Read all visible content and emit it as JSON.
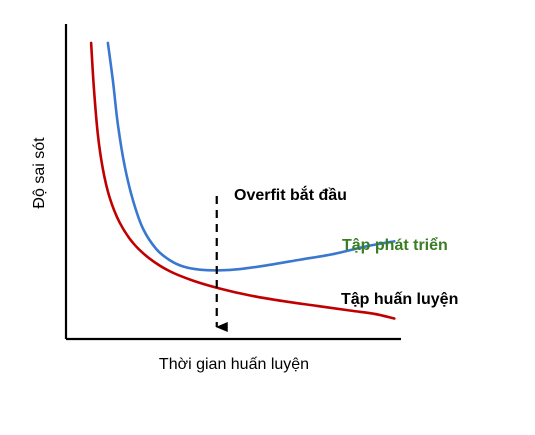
{
  "chart_data": {
    "type": "line",
    "title": "",
    "xlabel": "Thời gian huấn luyện",
    "ylabel": "Độ sai sót",
    "xlim": [
      0,
      100
    ],
    "ylim": [
      0,
      100
    ],
    "grid": false,
    "ticks": false,
    "series": [
      {
        "name": "Tập phát triển",
        "color": "#3a78d0",
        "points": [
          [
            12.5,
            94
          ],
          [
            14,
            82
          ],
          [
            15.5,
            68
          ],
          [
            17.5,
            55
          ],
          [
            20,
            44
          ],
          [
            23,
            35
          ],
          [
            27,
            28.5
          ],
          [
            31,
            25
          ],
          [
            35,
            23
          ],
          [
            40,
            22
          ],
          [
            46,
            21.8
          ],
          [
            52,
            22.2
          ],
          [
            60,
            23.4
          ],
          [
            70,
            25.2
          ],
          [
            80,
            27
          ],
          [
            90,
            29.5
          ],
          [
            98,
            31
          ]
        ]
      },
      {
        "name": "Tập huấn luyện",
        "color": "#c00000",
        "points": [
          [
            7.5,
            94
          ],
          [
            8.3,
            80
          ],
          [
            9.5,
            65
          ],
          [
            11,
            54
          ],
          [
            13,
            45
          ],
          [
            16,
            37
          ],
          [
            20,
            30.5
          ],
          [
            25,
            25.5
          ],
          [
            31,
            21.5
          ],
          [
            38,
            18.5
          ],
          [
            46,
            16
          ],
          [
            55,
            13.8
          ],
          [
            65,
            12
          ],
          [
            75,
            10.5
          ],
          [
            85,
            9
          ],
          [
            92,
            8
          ],
          [
            98,
            6.5
          ]
        ]
      }
    ],
    "annotations": [
      {
        "id": "overfit",
        "text": "Overfit bắt đầu",
        "x": 45,
        "arrow": "dashed-down",
        "color": "#000000"
      },
      {
        "id": "dev",
        "text": "Tập phát triển",
        "series": "Tập phát triển",
        "color": "#3a7d22"
      },
      {
        "id": "train",
        "text": "Tập huấn luyện",
        "series": "Tập huấn luyện",
        "color": "#000000"
      }
    ]
  }
}
